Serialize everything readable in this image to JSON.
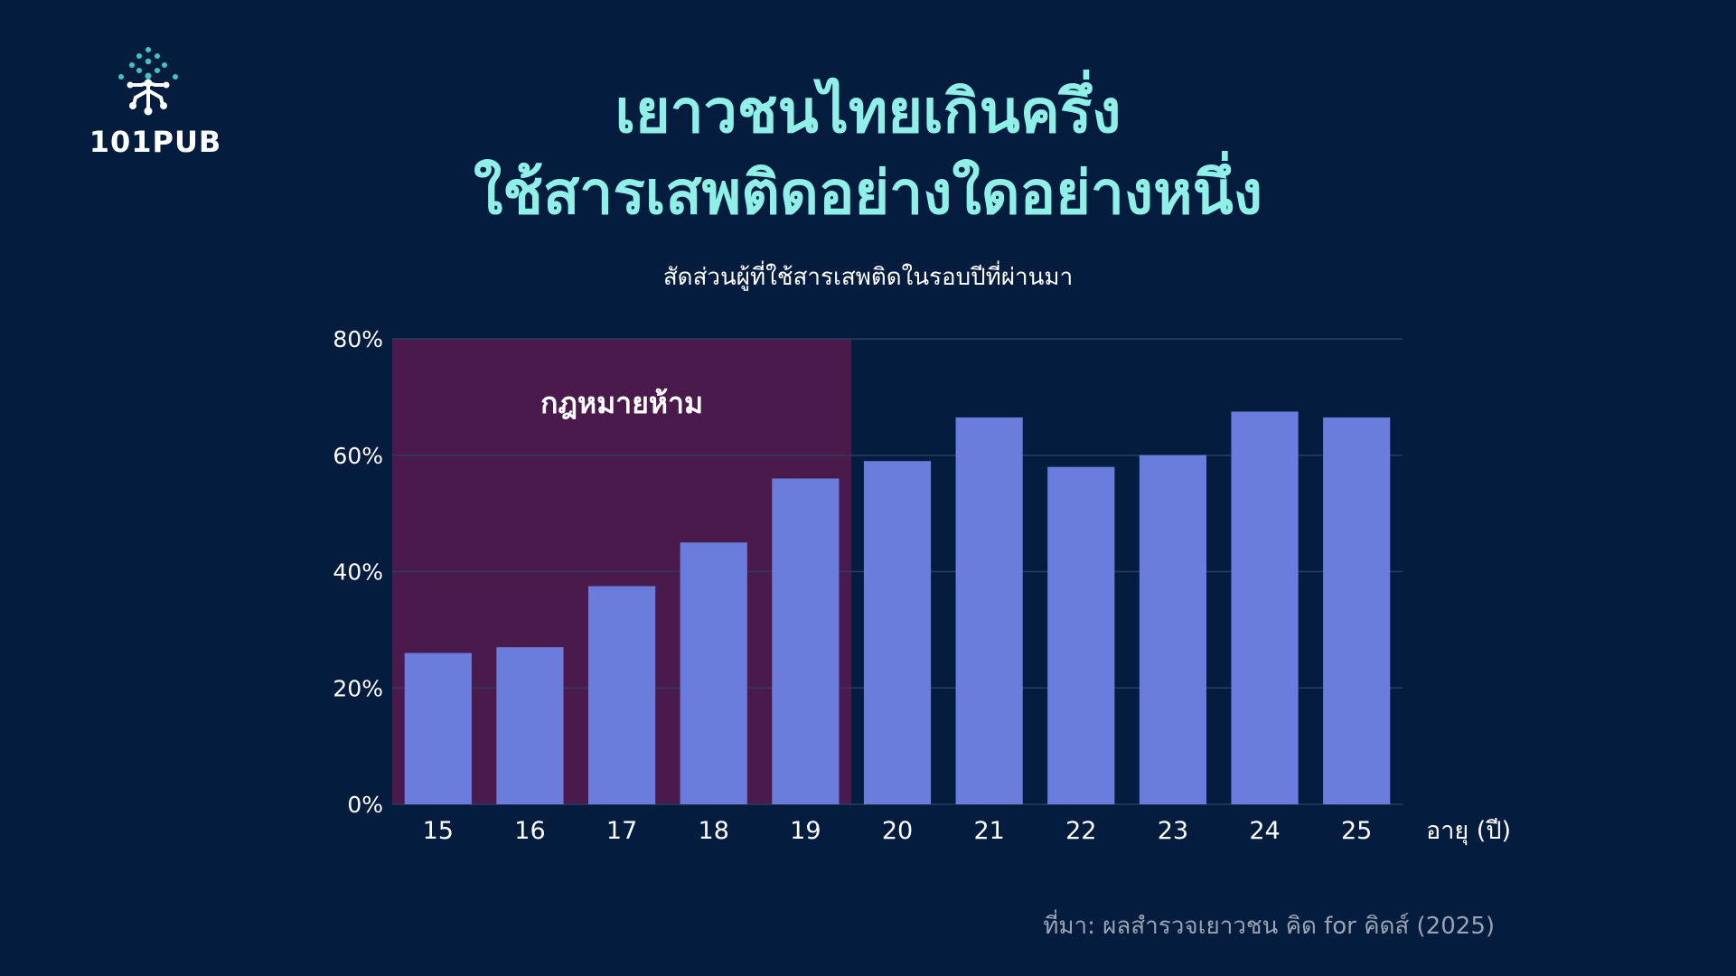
{
  "brand": {
    "logo_text": "101PUB",
    "logo_name": "101pub-logo-icon"
  },
  "title_lines": [
    "เยาวชนไทยเกินครึ่ง",
    "ใช้สารเสพติดอย่างใดอย่างหนึ่ง"
  ],
  "subtitle": "สัดส่วนผู้ที่ใช้สารเสพติดในรอบปีที่ผ่านมา",
  "source": "ที่มา: ผลสำรวจเยาวชน คิด for คิดส์ (2025)",
  "colors": {
    "background": "#041c3e",
    "title": "#8ff0e8",
    "bar": "#6a7ddd",
    "highlight": "#4a1a4d",
    "grid": "#2b3d5e",
    "text": "#ffffff"
  },
  "chart_data": {
    "type": "bar",
    "categories": [
      "15",
      "16",
      "17",
      "18",
      "19",
      "20",
      "21",
      "22",
      "23",
      "24",
      "25"
    ],
    "values": [
      26,
      27,
      37.5,
      45,
      56,
      59,
      66.5,
      58,
      60,
      67.5,
      66.5
    ],
    "xlabel": "อายุ (ปี)",
    "ylabel": "",
    "ylim": [
      0,
      80
    ],
    "yticks": [
      0,
      20,
      40,
      60,
      80
    ],
    "ytick_labels": [
      "0%",
      "20%",
      "40%",
      "60%",
      "80%"
    ],
    "grid": true,
    "highlight_region": {
      "from": "15",
      "to": "19",
      "label": "กฎหมายห้าม"
    }
  }
}
